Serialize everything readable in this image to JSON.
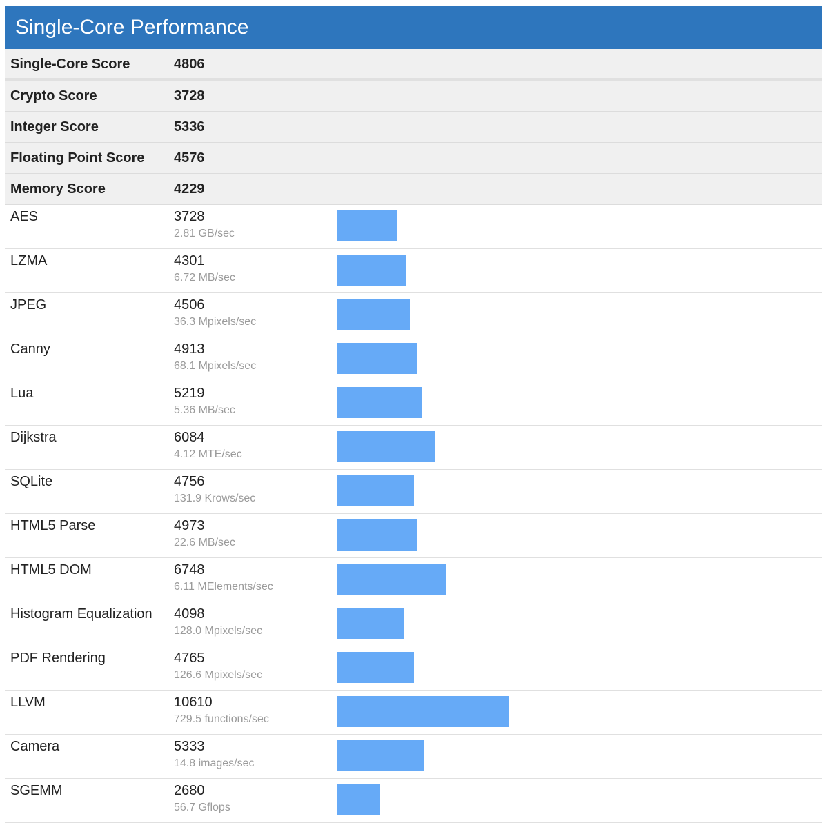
{
  "header": {
    "title": "Single-Core Performance"
  },
  "summary": [
    {
      "label": "Single-Core Score",
      "value": "4806"
    },
    {
      "label": "Crypto Score",
      "value": "3728"
    },
    {
      "label": "Integer Score",
      "value": "5336"
    },
    {
      "label": "Floating Point Score",
      "value": "4576"
    },
    {
      "label": "Memory Score",
      "value": "4229"
    }
  ],
  "benchmarks": [
    {
      "name": "AES",
      "score": "3728",
      "rate": "2.81 GB/sec"
    },
    {
      "name": "LZMA",
      "score": "4301",
      "rate": "6.72 MB/sec"
    },
    {
      "name": "JPEG",
      "score": "4506",
      "rate": "36.3 Mpixels/sec"
    },
    {
      "name": "Canny",
      "score": "4913",
      "rate": "68.1 Mpixels/sec"
    },
    {
      "name": "Lua",
      "score": "5219",
      "rate": "5.36 MB/sec"
    },
    {
      "name": "Dijkstra",
      "score": "6084",
      "rate": "4.12 MTE/sec"
    },
    {
      "name": "SQLite",
      "score": "4756",
      "rate": "131.9 Krows/sec"
    },
    {
      "name": "HTML5 Parse",
      "score": "4973",
      "rate": "22.6 MB/sec"
    },
    {
      "name": "HTML5 DOM",
      "score": "6748",
      "rate": "6.11 MElements/sec"
    },
    {
      "name": "Histogram Equalization",
      "score": "4098",
      "rate": "128.0 Mpixels/sec"
    },
    {
      "name": "PDF Rendering",
      "score": "4765",
      "rate": "126.6 Mpixels/sec"
    },
    {
      "name": "LLVM",
      "score": "10610",
      "rate": "729.5 functions/sec"
    },
    {
      "name": "Camera",
      "score": "5333",
      "rate": "14.8 images/sec"
    },
    {
      "name": "SGEMM",
      "score": "2680",
      "rate": "56.7 Gflops"
    }
  ],
  "colors": {
    "header_bg": "#2e76bd",
    "bar": "#66aaf7",
    "summary_bg": "#f0f0f0"
  }
}
